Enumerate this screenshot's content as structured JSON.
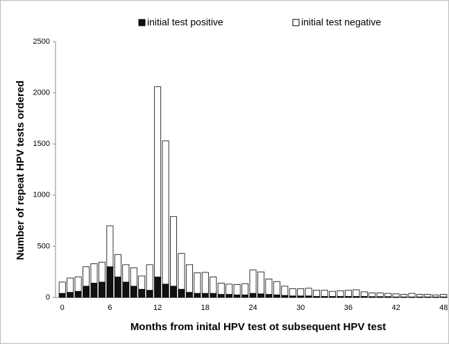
{
  "chart_data": {
    "type": "stacked_bar",
    "xlabel": "Months from inital HPV test ot subsequent HPV test",
    "ylabel": "Number of repeat HPV tests ordered",
    "categories": [
      "0",
      null,
      null,
      null,
      null,
      null,
      "6",
      null,
      null,
      null,
      null,
      null,
      "12",
      null,
      null,
      null,
      null,
      null,
      "18",
      null,
      null,
      null,
      null,
      null,
      "24",
      null,
      null,
      null,
      null,
      null,
      "30",
      null,
      null,
      null,
      null,
      null,
      "36",
      null,
      null,
      null,
      null,
      null,
      "42",
      null,
      null,
      null,
      null,
      null,
      "48"
    ],
    "series": [
      {
        "name": "initial test positive",
        "color": "#111111",
        "values": [
          40,
          50,
          60,
          110,
          140,
          150,
          300,
          200,
          150,
          110,
          80,
          70,
          200,
          130,
          110,
          80,
          50,
          40,
          40,
          40,
          30,
          30,
          25,
          25,
          40,
          35,
          30,
          25,
          20,
          15,
          15,
          15,
          10,
          10,
          10,
          10,
          10,
          10,
          10,
          8,
          8,
          8,
          5,
          5,
          5,
          5,
          5,
          5,
          5
        ]
      },
      {
        "name": "initial test negative",
        "color": "#ffffff",
        "values": [
          110,
          140,
          140,
          190,
          190,
          195,
          400,
          220,
          170,
          180,
          130,
          250,
          1860,
          1400,
          680,
          350,
          270,
          200,
          205,
          160,
          110,
          100,
          100,
          110,
          230,
          215,
          150,
          130,
          90,
          70,
          70,
          75,
          60,
          60,
          50,
          55,
          60,
          65,
          45,
          37,
          37,
          32,
          30,
          25,
          35,
          25,
          25,
          20,
          25
        ]
      }
    ],
    "ylim": [
      0,
      2500
    ],
    "yticks": [
      0,
      500,
      1000,
      1500,
      2000,
      2500
    ]
  }
}
